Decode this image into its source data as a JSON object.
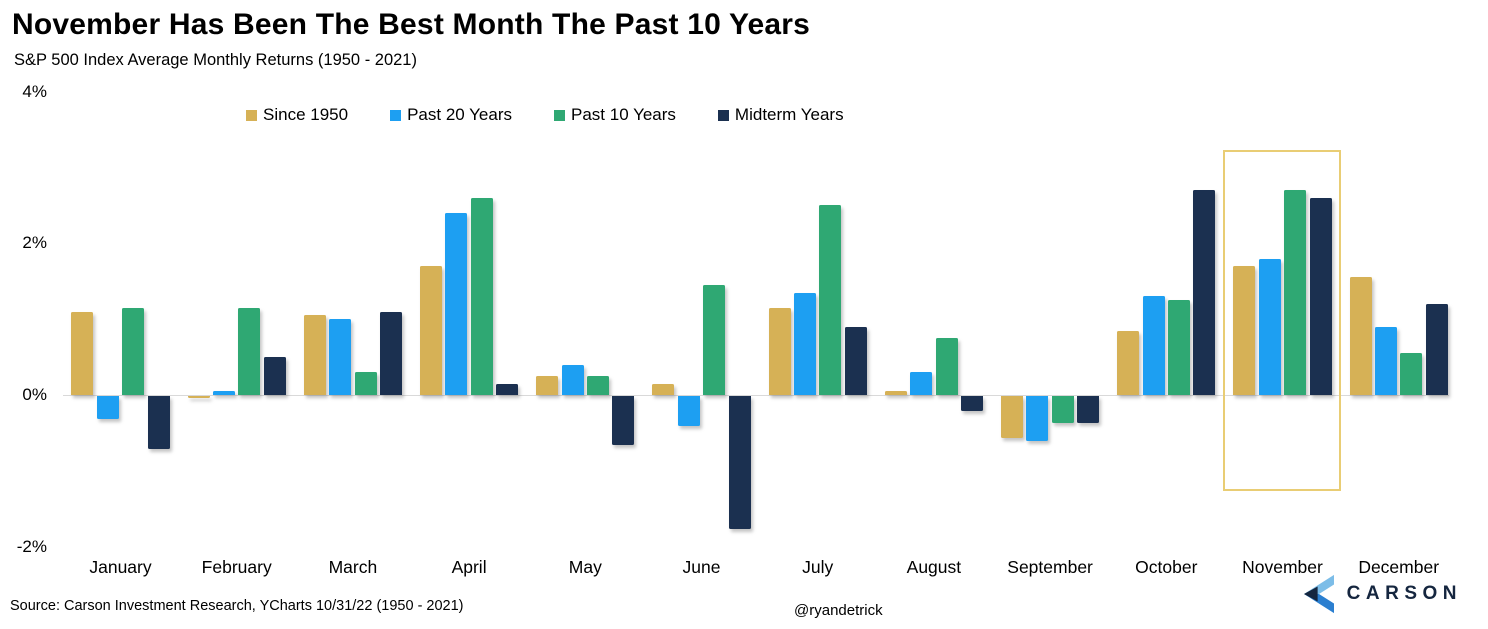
{
  "header": {
    "title": "November Has Been The Best Month The Past 10 Years",
    "subtitle": "S&P 500 Index Average Monthly Returns (1950 - 2021)"
  },
  "footer": {
    "source": "Source: Carson Investment Research, YCharts 10/31/22 (1950 - 2021)",
    "handle": "@ryandetrick",
    "brand": "CARSON"
  },
  "colors": {
    "background": "#FFFFFF",
    "text": "#000000",
    "axis_line": "#D9D9D9",
    "highlight_border": "#E9CD74",
    "brand_navy": "#15263F",
    "brand_light_blue": "#7CBDE8",
    "brand_mid_blue": "#2B7FD0"
  },
  "chart_data": {
    "type": "bar",
    "title": "November Has Been The Best Month The Past 10 Years",
    "subtitle": "S&P 500 Index Average Monthly Returns (1950 - 2021)",
    "categories": [
      "January",
      "February",
      "March",
      "April",
      "May",
      "June",
      "July",
      "August",
      "September",
      "October",
      "November",
      "December"
    ],
    "series": [
      {
        "name": "Since 1950",
        "color": "#D6B156",
        "values": [
          1.1,
          -0.03,
          1.05,
          1.7,
          0.25,
          0.15,
          1.15,
          0.05,
          -0.55,
          0.85,
          1.7,
          1.55
        ]
      },
      {
        "name": "Past 20 Years",
        "color": "#1D9FF2",
        "values": [
          -0.3,
          0.05,
          1.0,
          2.4,
          0.4,
          -0.4,
          1.35,
          0.3,
          -0.6,
          1.3,
          1.8,
          0.9
        ]
      },
      {
        "name": "Past 10 Years",
        "color": "#2FA873",
        "values": [
          1.15,
          1.15,
          0.3,
          2.6,
          0.25,
          1.45,
          2.5,
          0.75,
          -0.35,
          1.25,
          2.7,
          0.55
        ]
      },
      {
        "name": "Midterm Years",
        "color": "#1B3050",
        "values": [
          -0.7,
          0.5,
          1.1,
          0.15,
          -0.65,
          -1.75,
          0.9,
          -0.2,
          -0.35,
          2.7,
          2.6,
          1.2
        ]
      }
    ],
    "yticks": [
      {
        "v": 4,
        "label": "4%"
      },
      {
        "v": 2,
        "label": "2%"
      },
      {
        "v": 0,
        "label": "0%"
      },
      {
        "v": -2,
        "label": "-2%"
      }
    ],
    "ylim": [
      -2,
      4
    ],
    "grid": false,
    "legend_position": "top",
    "highlight_category": "November",
    "highlight_index": 10
  }
}
